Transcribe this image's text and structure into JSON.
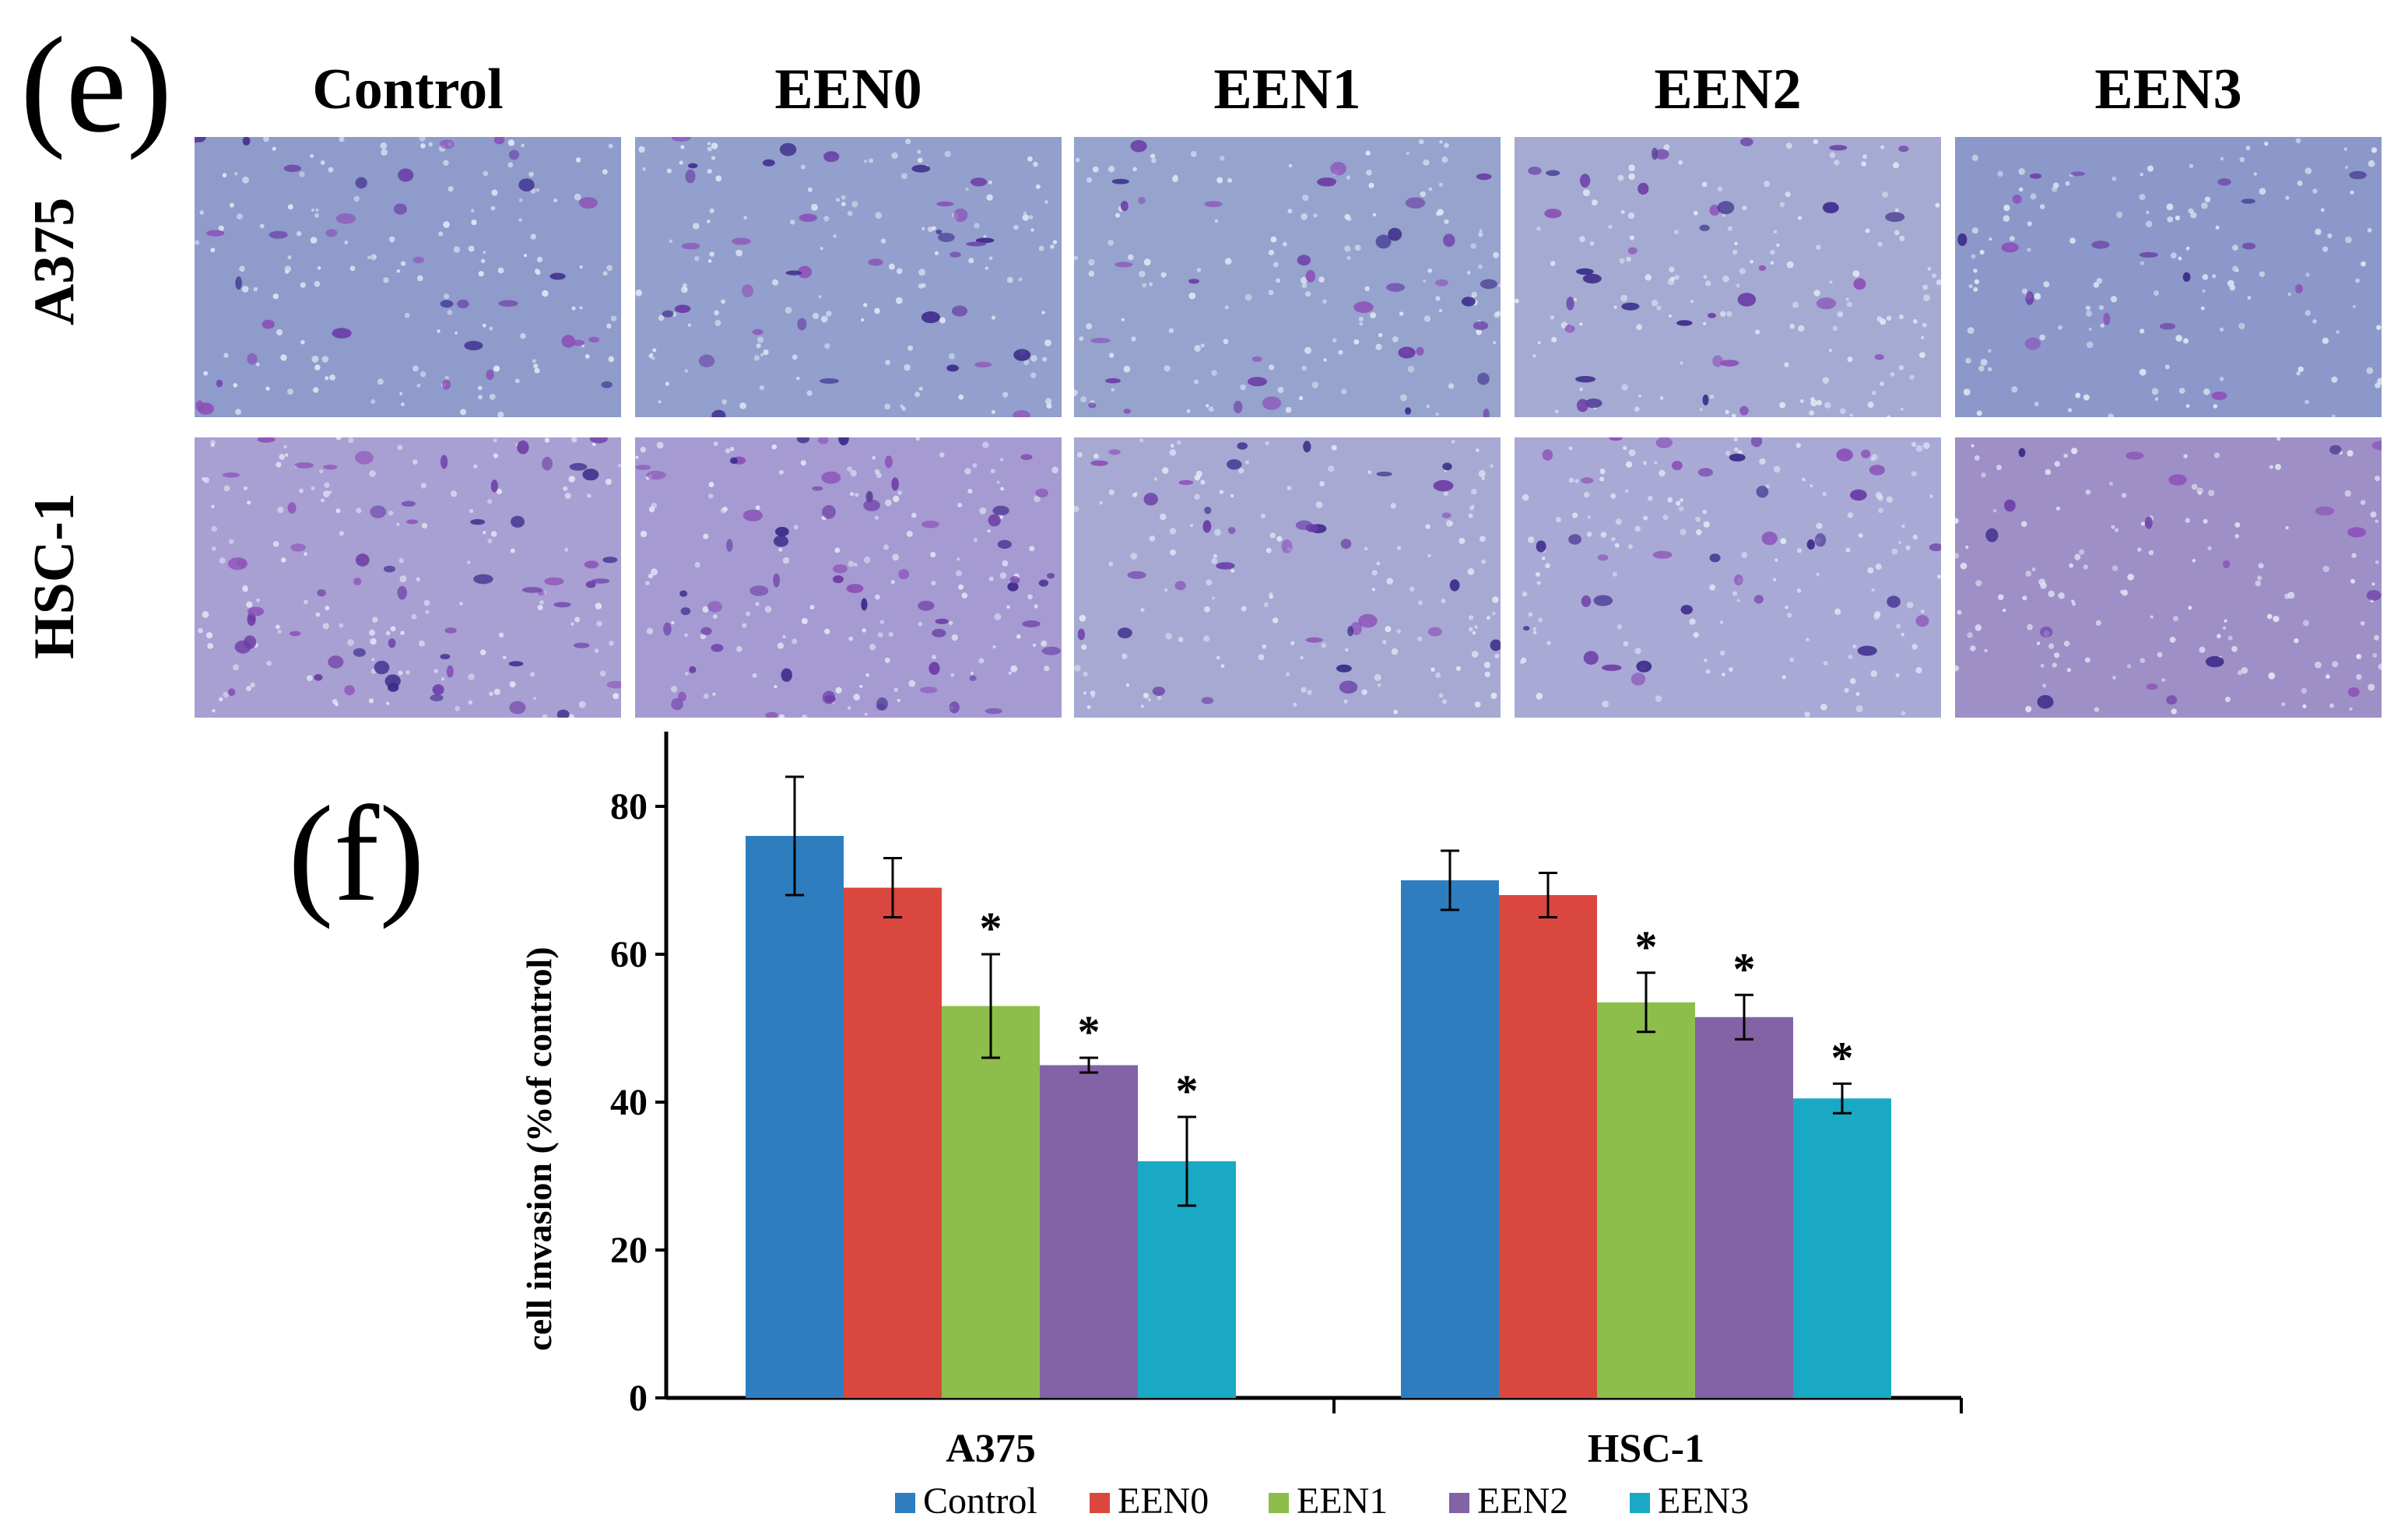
{
  "figure": {
    "panel_e_letter": "(e)",
    "panel_f_letter": "(f)",
    "columns": [
      "Control",
      "EEN0",
      "EEN1",
      "EEN2",
      "EEN3"
    ],
    "rows": [
      "A375",
      "HSC-1"
    ],
    "micrograph_tints": {
      "A375": [
        "#8e9bcb",
        "#939fcc",
        "#96a3cd",
        "#a4aad2",
        "#8b98c9"
      ],
      "HSC-1": [
        "#a89fd3",
        "#a59bd2",
        "#a7a9d3",
        "#a9a9d6",
        "#9e8fc6"
      ]
    }
  },
  "chart_data": {
    "type": "bar",
    "categories": [
      "A375",
      "HSC-1"
    ],
    "ylabel": "cell invasion (%of control)",
    "xlabel": "",
    "ylim": [
      0,
      80
    ],
    "yticks": [
      0,
      20,
      40,
      60,
      80
    ],
    "grid": false,
    "legend_position": "bottom",
    "significance_marker": "*",
    "series": [
      {
        "name": "Control",
        "color": "#2e7ebf",
        "values": [
          76,
          70
        ],
        "errors": [
          8,
          4
        ],
        "significant": [
          false,
          false
        ]
      },
      {
        "name": "EEN0",
        "color": "#d9473f",
        "values": [
          69,
          68
        ],
        "errors": [
          4,
          3
        ],
        "significant": [
          false,
          false
        ]
      },
      {
        "name": "EEN1",
        "color": "#8dbe4b",
        "values": [
          53,
          53.5
        ],
        "errors": [
          7,
          4
        ],
        "significant": [
          true,
          true
        ]
      },
      {
        "name": "EEN2",
        "color": "#8462a6",
        "values": [
          45,
          51.5
        ],
        "errors": [
          1,
          3
        ],
        "significant": [
          true,
          true
        ]
      },
      {
        "name": "EEN3",
        "color": "#1aa9c4",
        "values": [
          32,
          40.5
        ],
        "errors": [
          6,
          2
        ],
        "significant": [
          true,
          true
        ]
      }
    ]
  }
}
